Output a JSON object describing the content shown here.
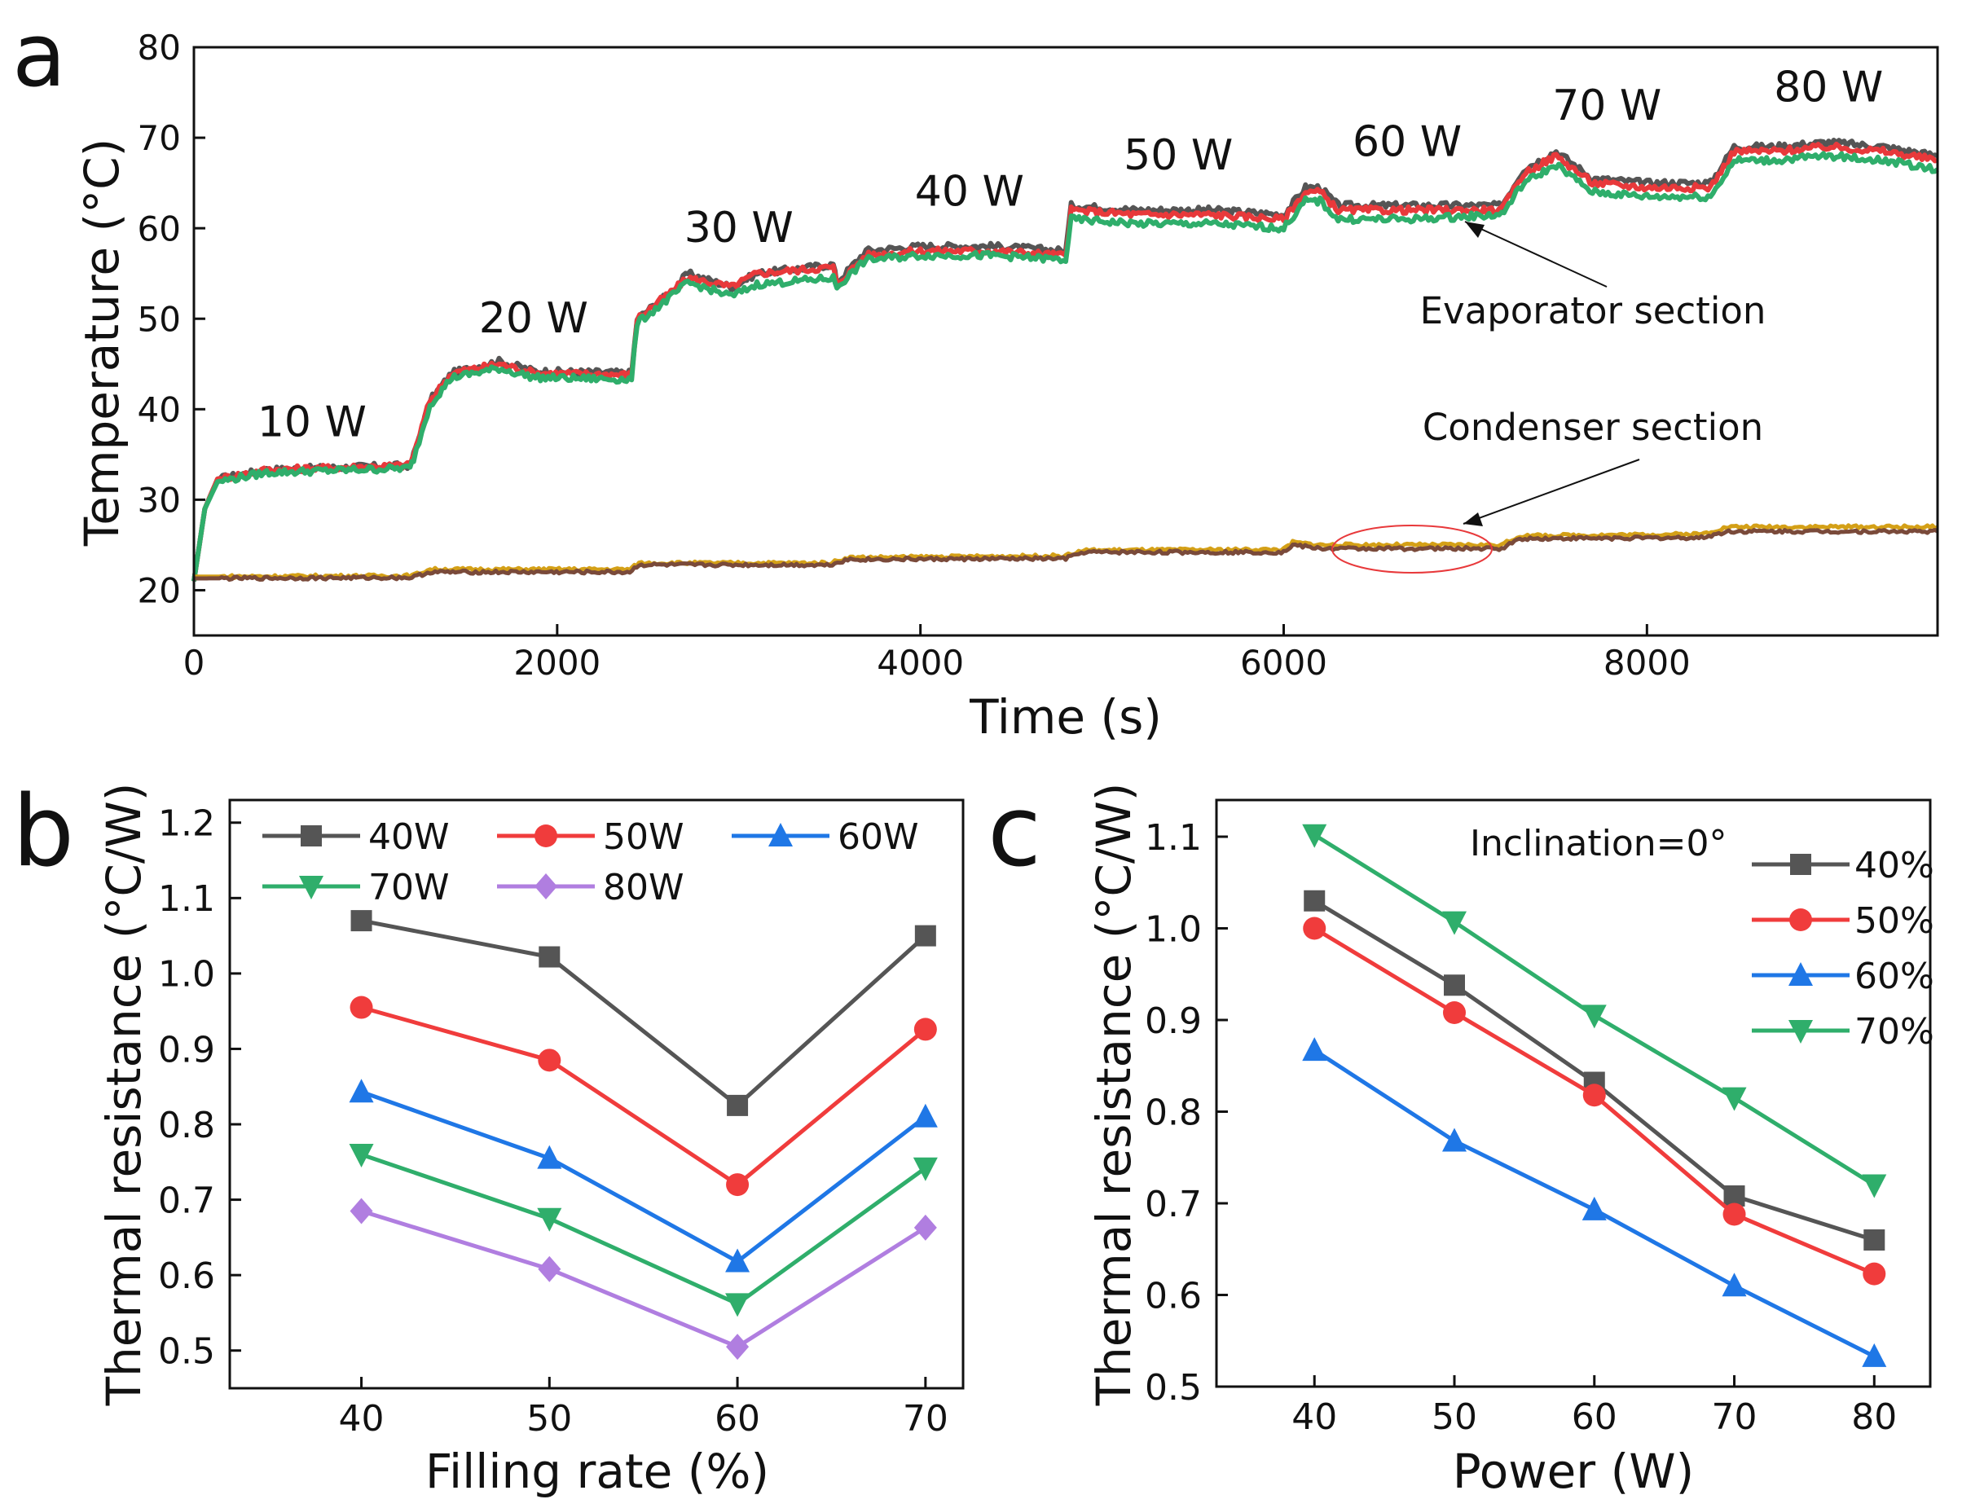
{
  "chart_data": [
    {
      "id": "a",
      "panel_label": "a",
      "type": "line",
      "xlabel": "Time (s)",
      "ylabel": "Temperature (°C)",
      "xlim": [
        0,
        9600
      ],
      "ylim": [
        15,
        80
      ],
      "xticks": [
        0,
        2000,
        4000,
        6000,
        8000
      ],
      "yticks": [
        20,
        30,
        40,
        50,
        60,
        70,
        80
      ],
      "series": [
        {
          "name": "Evaporator section (dark)",
          "color": "#555555",
          "points": [
            [
              0,
              21
            ],
            [
              60,
              29
            ],
            [
              130,
              32.3
            ],
            [
              400,
              33.3
            ],
            [
              1190,
              33.8
            ],
            [
              1210,
              35
            ],
            [
              1300,
              41
            ],
            [
              1420,
              44
            ],
            [
              1680,
              45.3
            ],
            [
              1880,
              44.2
            ],
            [
              2410,
              44
            ],
            [
              2440,
              50
            ],
            [
              2600,
              52.5
            ],
            [
              2720,
              55
            ],
            [
              2960,
              53.5
            ],
            [
              3100,
              55
            ],
            [
              3520,
              56
            ],
            [
              3540,
              54
            ],
            [
              3700,
              57.5
            ],
            [
              4000,
              58
            ],
            [
              4400,
              58
            ],
            [
              4800,
              57.5
            ],
            [
              4830,
              62.5
            ],
            [
              5200,
              62
            ],
            [
              5600,
              62
            ],
            [
              6000,
              61.5
            ],
            [
              6120,
              64.5
            ],
            [
              6200,
              64.5
            ],
            [
              6300,
              62.5
            ],
            [
              6700,
              62.5
            ],
            [
              7200,
              62.5
            ],
            [
              7320,
              66.5
            ],
            [
              7500,
              68.5
            ],
            [
              7700,
              65.5
            ],
            [
              8000,
              65
            ],
            [
              8350,
              65
            ],
            [
              8480,
              69
            ],
            [
              8700,
              69
            ],
            [
              9000,
              69.5
            ],
            [
              9300,
              69
            ],
            [
              9600,
              68
            ]
          ]
        },
        {
          "name": "Evaporator section (red)",
          "color": "#e8393b",
          "points": [
            [
              0,
              21
            ],
            [
              60,
              29
            ],
            [
              130,
              32.3
            ],
            [
              400,
              33.3
            ],
            [
              1190,
              33.8
            ],
            [
              1210,
              35
            ],
            [
              1300,
              41
            ],
            [
              1420,
              44
            ],
            [
              1680,
              45
            ],
            [
              1880,
              44
            ],
            [
              2410,
              43.8
            ],
            [
              2440,
              50
            ],
            [
              2600,
              52.5
            ],
            [
              2720,
              54.5
            ],
            [
              2960,
              53.5
            ],
            [
              3100,
              55
            ],
            [
              3520,
              55.7
            ],
            [
              3540,
              53.8
            ],
            [
              3700,
              57
            ],
            [
              4000,
              57.5
            ],
            [
              4400,
              57.5
            ],
            [
              4800,
              57
            ],
            [
              4830,
              62
            ],
            [
              5200,
              61.5
            ],
            [
              5600,
              61.5
            ],
            [
              6000,
              61
            ],
            [
              6120,
              64
            ],
            [
              6200,
              64
            ],
            [
              6300,
              62
            ],
            [
              6700,
              62
            ],
            [
              7200,
              62
            ],
            [
              7320,
              66
            ],
            [
              7500,
              68
            ],
            [
              7700,
              65
            ],
            [
              8000,
              64.5
            ],
            [
              8350,
              64.5
            ],
            [
              8480,
              68.5
            ],
            [
              8700,
              68.5
            ],
            [
              9000,
              69
            ],
            [
              9300,
              68.5
            ],
            [
              9600,
              67.5
            ]
          ]
        },
        {
          "name": "Evaporator section (green)",
          "color": "#2fae6b",
          "points": [
            [
              0,
              21
            ],
            [
              60,
              29
            ],
            [
              130,
              32
            ],
            [
              400,
              33
            ],
            [
              1190,
              33.5
            ],
            [
              1210,
              34.5
            ],
            [
              1300,
              40.5
            ],
            [
              1420,
              43.5
            ],
            [
              1680,
              44.5
            ],
            [
              1880,
              43.5
            ],
            [
              2410,
              43.3
            ],
            [
              2440,
              49.5
            ],
            [
              2600,
              52
            ],
            [
              2720,
              54
            ],
            [
              2960,
              52.5
            ],
            [
              3100,
              53.8
            ],
            [
              3520,
              54.5
            ],
            [
              3540,
              53.5
            ],
            [
              3700,
              56.5
            ],
            [
              4000,
              57
            ],
            [
              4400,
              57
            ],
            [
              4800,
              56.5
            ],
            [
              4830,
              61
            ],
            [
              5200,
              60.5
            ],
            [
              5600,
              60.5
            ],
            [
              6000,
              60
            ],
            [
              6120,
              63
            ],
            [
              6200,
              63
            ],
            [
              6300,
              61
            ],
            [
              6700,
              61
            ],
            [
              7200,
              61.5
            ],
            [
              7320,
              65
            ],
            [
              7500,
              67
            ],
            [
              7700,
              64
            ],
            [
              8000,
              63.5
            ],
            [
              8350,
              63.5
            ],
            [
              8480,
              67.5
            ],
            [
              8700,
              67.5
            ],
            [
              9000,
              68
            ],
            [
              9300,
              67.5
            ],
            [
              9600,
              66.5
            ]
          ]
        },
        {
          "name": "Condenser section (yellow)",
          "color": "#d4a017",
          "points": [
            [
              0,
              21.5
            ],
            [
              1200,
              21.6
            ],
            [
              1300,
              22.3
            ],
            [
              2400,
              22.3
            ],
            [
              2450,
              23
            ],
            [
              3500,
              23
            ],
            [
              3600,
              23.6
            ],
            [
              4800,
              23.8
            ],
            [
              4900,
              24.4
            ],
            [
              6000,
              24.5
            ],
            [
              6050,
              25.3
            ],
            [
              6200,
              25
            ],
            [
              7200,
              25
            ],
            [
              7300,
              26
            ],
            [
              8300,
              26.2
            ],
            [
              8450,
              27
            ],
            [
              9600,
              27
            ]
          ]
        },
        {
          "name": "Condenser section (brown)",
          "color": "#7a4a3a",
          "points": [
            [
              0,
              21.3
            ],
            [
              1200,
              21.4
            ],
            [
              1300,
              22
            ],
            [
              2400,
              22
            ],
            [
              2450,
              22.8
            ],
            [
              3500,
              22.8
            ],
            [
              3600,
              23.4
            ],
            [
              4800,
              23.5
            ],
            [
              4900,
              24.2
            ],
            [
              6000,
              24.2
            ],
            [
              6050,
              25
            ],
            [
              6200,
              24.6
            ],
            [
              7200,
              24.6
            ],
            [
              7300,
              25.7
            ],
            [
              8300,
              25.8
            ],
            [
              8450,
              26.5
            ],
            [
              9600,
              26.5
            ]
          ]
        }
      ],
      "annotations": [
        {
          "text": "10 W",
          "x": 650,
          "y": 37
        },
        {
          "text": "20 W",
          "x": 1870,
          "y": 48.5
        },
        {
          "text": "30 W",
          "x": 3000,
          "y": 58.5
        },
        {
          "text": "40 W",
          "x": 4270,
          "y": 62.5
        },
        {
          "text": "50 W",
          "x": 5420,
          "y": 66.5
        },
        {
          "text": "60 W",
          "x": 6680,
          "y": 68
        },
        {
          "text": "70 W",
          "x": 7780,
          "y": 72
        },
        {
          "text": "80 W",
          "x": 9000,
          "y": 74
        }
      ],
      "section_labels": [
        {
          "text": "Evaporator section",
          "x": 7690,
          "y": 51
        },
        {
          "text": "Condenser section",
          "x": 7690,
          "y": 38
        }
      ]
    },
    {
      "id": "b",
      "panel_label": "b",
      "type": "line",
      "xlabel": "Filling rate (%)",
      "ylabel": "Thermal resistance (°C/W)",
      "xlim": [
        33,
        72
      ],
      "ylim": [
        0.45,
        1.23
      ],
      "xticks": [
        40,
        50,
        60,
        70
      ],
      "yticks": [
        0.5,
        0.6,
        0.7,
        0.8,
        0.9,
        1.0,
        1.1,
        1.2
      ],
      "ytick_labels": [
        "0.5",
        "0.6",
        "0.7",
        "0.8",
        "0.9",
        "1.0",
        "1.1",
        "1.2"
      ],
      "categories": [
        40,
        50,
        60,
        70
      ],
      "legend_position": "top",
      "series": [
        {
          "name": "40W",
          "color": "#555555",
          "marker": "square",
          "values": [
            1.07,
            1.022,
            0.825,
            1.05
          ]
        },
        {
          "name": "50W",
          "color": "#f03c3c",
          "marker": "circle",
          "values": [
            0.955,
            0.885,
            0.72,
            0.926
          ]
        },
        {
          "name": "60W",
          "color": "#1f77e6",
          "marker": "triangle-up",
          "values": [
            0.843,
            0.755,
            0.618,
            0.81
          ]
        },
        {
          "name": "70W",
          "color": "#2fae6b",
          "marker": "triangle-down",
          "values": [
            0.76,
            0.675,
            0.562,
            0.742
          ]
        },
        {
          "name": "80W",
          "color": "#b07ee0",
          "marker": "diamond",
          "values": [
            0.685,
            0.608,
            0.505,
            0.663
          ]
        }
      ]
    },
    {
      "id": "c",
      "panel_label": "c",
      "type": "line",
      "xlabel": "Power (W)",
      "ylabel": "Thermal resistance (°C/W)",
      "xlim": [
        33,
        84
      ],
      "ylim": [
        0.5,
        1.14
      ],
      "xticks": [
        40,
        50,
        60,
        70,
        80
      ],
      "yticks": [
        0.5,
        0.6,
        0.7,
        0.8,
        0.9,
        1.0,
        1.1
      ],
      "ytick_labels": [
        "0.5",
        "0.6",
        "0.7",
        "0.8",
        "0.9",
        "1.0",
        "1.1"
      ],
      "categories": [
        40,
        50,
        60,
        70,
        80
      ],
      "legend_position": "top-right",
      "annotation": "Inclination=0°",
      "series": [
        {
          "name": "40%",
          "color": "#555555",
          "marker": "square",
          "values": [
            1.03,
            0.938,
            0.832,
            0.708,
            0.66
          ]
        },
        {
          "name": "50%",
          "color": "#f03c3c",
          "marker": "circle",
          "values": [
            1.0,
            0.908,
            0.818,
            0.688,
            0.623
          ]
        },
        {
          "name": "60%",
          "color": "#1f77e6",
          "marker": "triangle-up",
          "values": [
            0.867,
            0.768,
            0.693,
            0.61,
            0.533
          ]
        },
        {
          "name": "70%",
          "color": "#2fae6b",
          "marker": "triangle-down",
          "values": [
            1.102,
            1.007,
            0.905,
            0.815,
            0.72
          ]
        }
      ]
    }
  ]
}
